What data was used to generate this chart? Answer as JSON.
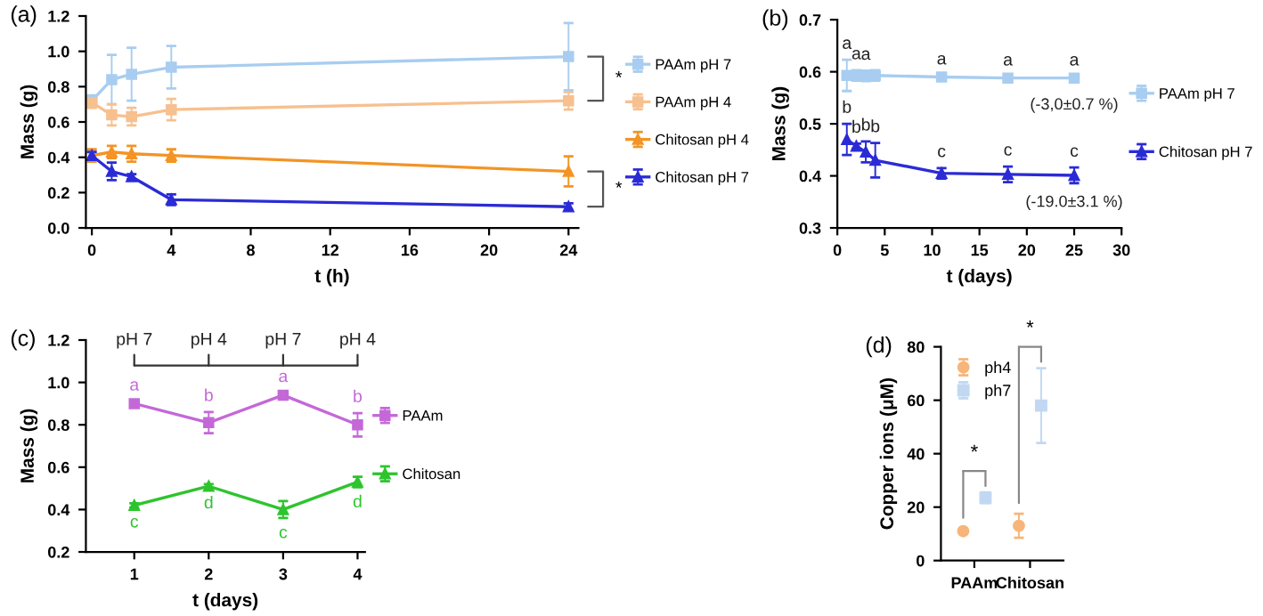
{
  "chart_data": [
    {
      "type": "line",
      "xlabel": "t (h)",
      "ylabel": "Mass (g)",
      "x": [
        0,
        1,
        2,
        4,
        24
      ],
      "xlim": [
        -0.3,
        24.5
      ],
      "xticks": [
        0,
        4,
        8,
        12,
        16,
        20,
        24
      ],
      "ylim": [
        0,
        1.2
      ],
      "yticks": [
        {
          "value": 0,
          "label": "0.0"
        },
        {
          "value": 0.2,
          "label": "0.2"
        },
        {
          "value": 0.4,
          "label": "0.4"
        },
        {
          "value": 0.6,
          "label": "0.6"
        },
        {
          "value": 0.8,
          "label": "0.8"
        },
        {
          "value": 1.0,
          "label": "1.0"
        },
        {
          "value": 1.2,
          "label": "1.2"
        }
      ],
      "legend": "right",
      "line_style": "solid",
      "series": [
        {
          "name": "PAAm pH 7",
          "color": "#a8cdf0",
          "marker": "square",
          "values": [
            0.72,
            0.84,
            0.87,
            0.91,
            0.97
          ],
          "errors": [
            0.03,
            0.14,
            0.15,
            0.12,
            0.19
          ]
        },
        {
          "name": "PAAm pH 4",
          "color": "#f7c08f",
          "marker": "square",
          "values": [
            0.71,
            0.64,
            0.63,
            0.67,
            0.72
          ],
          "errors": [
            0.03,
            0.06,
            0.05,
            0.06,
            0.05
          ]
        },
        {
          "name": "Chitosan pH 4",
          "color": "#f39425",
          "marker": "triangle",
          "values": [
            0.41,
            0.43,
            0.42,
            0.41,
            0.32
          ],
          "errors": [
            0.035,
            0.035,
            0.045,
            0.035,
            0.085
          ]
        },
        {
          "name": "Chitosan pH 7",
          "color": "#2b2bd6",
          "marker": "triangle",
          "values": [
            0.41,
            0.32,
            0.29,
            0.16,
            0.12
          ],
          "errors": [
            0.02,
            0.05,
            0.015,
            0.03,
            0.02
          ]
        }
      ],
      "annotations": [
        "(a)",
        "*",
        "*"
      ]
    },
    {
      "type": "line",
      "xlabel": "t (days)",
      "ylabel": "Mass (g)",
      "x": [
        1,
        2,
        3,
        4,
        11,
        18,
        25
      ],
      "xlim": [
        0,
        30
      ],
      "xticks": [
        0,
        5,
        10,
        15,
        20,
        25,
        30
      ],
      "ylim": [
        0.3,
        0.7
      ],
      "yticks": [
        0.3,
        0.4,
        0.5,
        0.6,
        0.7
      ],
      "legend": "right",
      "line_style": "solid",
      "series": [
        {
          "name": "PAAm pH 7",
          "color": "#a8cdf0",
          "marker": "square",
          "values": [
            0.593,
            0.593,
            0.592,
            0.593,
            0.59,
            0.588,
            0.588
          ],
          "errors": [
            0.03,
            0.01,
            0.01,
            0.01,
            0.003,
            0.003,
            0.003
          ],
          "value_labels": [
            "a",
            "a",
            "a",
            null,
            "a",
            "a",
            "a"
          ]
        },
        {
          "name": "Chitosan pH 7",
          "color": "#2b2bd6",
          "marker": "triangle",
          "values": [
            0.47,
            0.457,
            0.446,
            0.43,
            0.405,
            0.403,
            0.401
          ],
          "errors": [
            0.03,
            0.005,
            0.02,
            0.033,
            0.01,
            0.015,
            0.015
          ],
          "value_labels": [
            "b",
            "b",
            "b",
            "b",
            "c",
            "c",
            "c"
          ]
        }
      ],
      "annotations": [
        "(b)",
        "(-3,0±0.7 %)",
        "(-19.0±3.1 %)"
      ]
    },
    {
      "type": "line",
      "xlabel": "t (days)",
      "ylabel": "Mass (g)",
      "x": [
        1,
        2,
        3,
        4
      ],
      "xlim": [
        0.35,
        4.1
      ],
      "xticks": [
        1,
        2,
        3,
        4
      ],
      "ylim": [
        0.2,
        1.2
      ],
      "yticks": [
        0.2,
        0.4,
        0.6,
        0.8,
        {
          "value": 1.0,
          "label": "1.0"
        },
        {
          "value": 1.2,
          "label": "1.2"
        }
      ],
      "legend": "right",
      "line_style": "solid",
      "series": [
        {
          "name": "PAAm",
          "color": "#c468d8",
          "marker": "square",
          "values": [
            0.9,
            0.81,
            0.94,
            0.8
          ],
          "errors": [
            0.01,
            0.05,
            0.01,
            0.055
          ],
          "value_labels": [
            "a",
            "b",
            "a",
            "b"
          ]
        },
        {
          "name": "Chitosan",
          "color": "#2ec42e",
          "marker": "triangle",
          "values": [
            0.42,
            0.51,
            0.4,
            0.53
          ],
          "errors": [
            0.01,
            0.01,
            0.04,
            0.025
          ],
          "value_labels": [
            "c",
            "d",
            "c",
            "d"
          ]
        }
      ],
      "annotations": [
        "(c)",
        "pH 7",
        "pH 4",
        "pH 7",
        "pH 4"
      ]
    },
    {
      "type": "scatter",
      "ylabel": "Copper ions (μM)",
      "categories": [
        "PAAm",
        "Chitosan"
      ],
      "ylim": [
        0,
        80
      ],
      "yticks": [
        0,
        20,
        40,
        60,
        80
      ],
      "legend": "top left",
      "series": [
        {
          "name": "ph4",
          "color": "#f7b57a",
          "marker": "circle",
          "values": [
            11,
            13
          ],
          "errors": [
            1,
            4.5
          ]
        },
        {
          "name": "ph7",
          "color": "#c2d8f2",
          "marker": "square",
          "values": [
            23.5,
            58
          ],
          "errors": [
            2,
            14
          ]
        }
      ],
      "annotations": [
        "(d)",
        "*",
        "*"
      ]
    }
  ]
}
